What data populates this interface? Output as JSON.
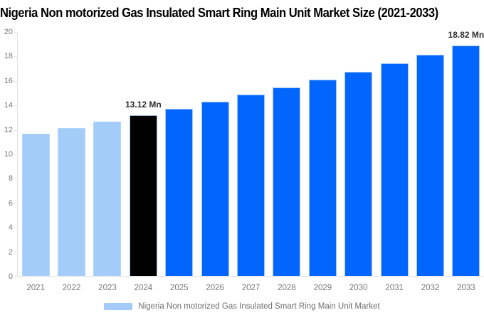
{
  "title": "Nigeria Non motorized Gas Insulated Smart Ring Main Unit Market Size (2021-2033)",
  "legend": {
    "label": "Nigeria Non motorized Gas Insulated Smart Ring Main Unit Market",
    "swatch_color": "#a3cdf8"
  },
  "theme": {
    "light_bar_color": "#a3cdf8",
    "highlight_bar_color": "#000000",
    "primary_bar_color": "#0366fc",
    "axis_line_color": "#e0e0e0",
    "tick_text_color": "#787878",
    "value_label_color": "#2d2d2d",
    "title_color": "#000000"
  },
  "chart_data": {
    "type": "bar",
    "title": "Nigeria Non motorized Gas Insulated Smart Ring Main Unit Market Size (2021-2033)",
    "xlabel": "",
    "ylabel": "",
    "ylim": [
      0,
      20
    ],
    "yticks": [
      0,
      2,
      4,
      6,
      8,
      10,
      12,
      14,
      16,
      18,
      20
    ],
    "grid": false,
    "legend_position": "bottom",
    "categories": [
      "2021",
      "2022",
      "2023",
      "2024",
      "2025",
      "2026",
      "2027",
      "2028",
      "2029",
      "2030",
      "2031",
      "2032",
      "2033"
    ],
    "values": [
      11.63,
      12.11,
      12.61,
      13.12,
      13.66,
      14.22,
      14.81,
      15.42,
      16.05,
      16.71,
      17.4,
      18.08,
      18.82
    ],
    "bar_colors": [
      "#a3cdf8",
      "#a3cdf8",
      "#a3cdf8",
      "#000000",
      "#0366fc",
      "#0366fc",
      "#0366fc",
      "#0366fc",
      "#0366fc",
      "#0366fc",
      "#0366fc",
      "#0366fc",
      "#0366fc"
    ],
    "point_labels": [
      "",
      "",
      "",
      "13.12 Mn",
      "",
      "",
      "",
      "",
      "",
      "",
      "",
      "",
      "18.82 Mn"
    ],
    "series": [
      {
        "name": "Nigeria Non motorized Gas Insulated Smart Ring Main Unit Market",
        "values": [
          11.63,
          12.11,
          12.61,
          13.12,
          13.66,
          14.22,
          14.81,
          15.42,
          16.05,
          16.71,
          17.4,
          18.08,
          18.82
        ]
      }
    ]
  }
}
